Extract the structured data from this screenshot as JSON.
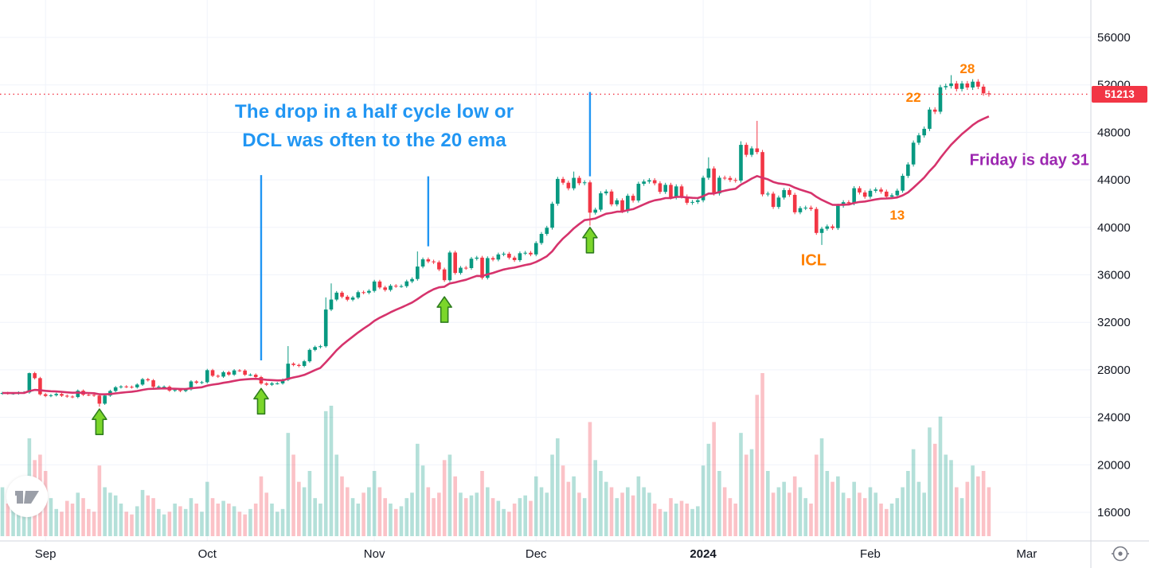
{
  "icons": {
    "logo": "tradingview-logo",
    "bottom_right": "target-icon"
  },
  "chart_data": {
    "type": "candlestick",
    "legend_position": "none",
    "grid": true,
    "x_axis": {
      "labels": [
        {
          "text": "Sep",
          "day": 8
        },
        {
          "text": "Oct",
          "day": 38
        },
        {
          "text": "Nov",
          "day": 69
        },
        {
          "text": "Dec",
          "day": 99
        },
        {
          "text": "2024",
          "day": 130,
          "bold": true
        },
        {
          "text": "Feb",
          "day": 161
        },
        {
          "text": "Mar",
          "day": 190
        }
      ]
    },
    "y_axis": {
      "min": 16000,
      "max": 56000,
      "tick_step": 4000,
      "ticks": [
        56000,
        52000,
        48000,
        44000,
        40000,
        36000,
        32000,
        28000,
        24000,
        20000,
        16000
      ]
    },
    "candles": {
      "first_open": 26000,
      "up_color": "#089981",
      "down_color": "#f23645",
      "closes": [
        26050,
        26010,
        26010,
        26090,
        26100,
        27720,
        27300,
        25940,
        25800,
        25860,
        25970,
        25820,
        25750,
        25710,
        26240,
        25900,
        25890,
        25830,
        25150,
        25830,
        26220,
        26530,
        26600,
        26570,
        26530,
        26760,
        27210,
        27120,
        26570,
        26580,
        26580,
        26250,
        26300,
        26220,
        26360,
        27020,
        26910,
        26960,
        27970,
        27500,
        27430,
        27800,
        27600,
        27950,
        27940,
        27590,
        27590,
        27390,
        26850,
        26750,
        26860,
        26860,
        27160,
        28520,
        28410,
        28330,
        28720,
        29680,
        29920,
        29990,
        33080,
        33920,
        34500,
        34160,
        33910,
        34090,
        34540,
        34500,
        34650,
        35440,
        34940,
        34730,
        35080,
        35050,
        35050,
        35450,
        35650,
        36700,
        37310,
        37130,
        37060,
        36460,
        35550,
        37880,
        36160,
        36600,
        36570,
        37360,
        37450,
        35750,
        37410,
        37290,
        37720,
        37780,
        37450,
        37240,
        37820,
        37860,
        37720,
        38680,
        39450,
        39970,
        41990,
        44080,
        43760,
        43290,
        44170,
        43720,
        43790,
        41240,
        41490,
        42870,
        43020,
        41940,
        42280,
        41370,
        42660,
        42260,
        43670,
        43860,
        43970,
        43710,
        42990,
        43580,
        42520,
        43450,
        42600,
        42070,
        42140,
        42280,
        44180,
        44960,
        42850,
        44180,
        44160,
        43990,
        43940,
        46950,
        46110,
        46650,
        46340,
        42780,
        42840,
        41720,
        42510,
        43140,
        42740,
        41270,
        41620,
        41660,
        41550,
        39530,
        39880,
        40080,
        39940,
        41820,
        42120,
        42030,
        43300,
        42940,
        42580,
        43080,
        43190,
        43010,
        42580,
        42700,
        43090,
        44340,
        45300,
        47130,
        47750,
        48300,
        49920,
        49740,
        51800,
        51900,
        52120,
        51660,
        52120,
        51780,
        52270,
        51850,
        51290,
        51213
      ],
      "wick_overrides": {
        "5": {
          "high": 27770
        },
        "18": {
          "low": 24900
        },
        "53": {
          "high": 30000
        },
        "60": {
          "high": 34100
        },
        "61": {
          "high": 35280
        },
        "77": {
          "high": 37970
        },
        "106": {
          "high": 44700
        },
        "109": {
          "low": 40150
        },
        "131": {
          "high": 45900
        },
        "137": {
          "high": 47250
        },
        "140": {
          "high": 48970
        },
        "152": {
          "low": 38520
        },
        "176": {
          "high": 52820
        }
      }
    },
    "volume": {
      "max_scale": 60,
      "values": [
        18,
        12,
        10,
        11,
        14,
        36,
        28,
        30,
        24,
        14,
        10,
        9,
        13,
        12,
        16,
        14,
        10,
        9,
        26,
        18,
        16,
        15,
        12,
        9,
        8,
        11,
        17,
        15,
        14,
        10,
        8,
        9,
        12,
        11,
        10,
        14,
        12,
        9,
        20,
        14,
        12,
        13,
        12,
        11,
        9,
        8,
        10,
        12,
        22,
        16,
        12,
        9,
        10,
        38,
        30,
        20,
        18,
        24,
        14,
        12,
        46,
        48,
        30,
        22,
        18,
        14,
        12,
        16,
        18,
        24,
        18,
        14,
        12,
        10,
        11,
        14,
        16,
        34,
        26,
        18,
        14,
        16,
        28,
        30,
        22,
        16,
        14,
        15,
        16,
        24,
        18,
        14,
        13,
        10,
        9,
        12,
        14,
        15,
        13,
        22,
        18,
        16,
        30,
        36,
        26,
        20,
        22,
        16,
        14,
        42,
        28,
        24,
        20,
        18,
        14,
        16,
        18,
        15,
        22,
        18,
        16,
        12,
        10,
        9,
        14,
        12,
        13,
        12,
        10,
        11,
        26,
        34,
        42,
        24,
        18,
        14,
        12,
        38,
        30,
        32,
        52,
        60,
        24,
        16,
        18,
        20,
        16,
        22,
        18,
        14,
        12,
        30,
        36,
        24,
        20,
        22,
        16,
        14,
        20,
        16,
        14,
        18,
        16,
        12,
        10,
        12,
        14,
        18,
        24,
        32,
        20,
        16,
        40,
        34,
        44,
        30,
        28,
        18,
        14,
        20,
        26,
        22,
        24,
        18
      ]
    },
    "ema": {
      "period": 20,
      "color": "#d6336c"
    },
    "current_price": 51213,
    "last_price_label": "51213",
    "annotations": {
      "note": {
        "text_line1": "The drop in a half cycle low or",
        "text_line2": "DCL was often to the 20 ema",
        "color": "#2196f3",
        "day": 69,
        "price_line1": 49700,
        "price_line2": 47300
      },
      "vlines": [
        {
          "day": 48,
          "price_top": 44400,
          "price_bottom": 28800
        },
        {
          "day": 79,
          "price_top": 44300,
          "price_bottom": 38400
        },
        {
          "day": 109,
          "price_top": 51400,
          "price_bottom": 44300
        }
      ],
      "arrow_color": "#7bd62a",
      "arrow_outline": "#2f7d1e",
      "arrows": [
        {
          "day": 18,
          "tip_price": 24700
        },
        {
          "day": 48,
          "tip_price": 26430
        },
        {
          "day": 82,
          "tip_price": 34150
        },
        {
          "day": 109,
          "tip_price": 40000
        }
      ],
      "day_count_labels": [
        {
          "text": "13",
          "day": 166,
          "price": 41000
        },
        {
          "text": "22",
          "day": 169,
          "price": 50900
        },
        {
          "text": "28",
          "day": 179,
          "price": 53350
        }
      ],
      "icl_label": {
        "text": "ICL",
        "day": 150.5,
        "price": 37150
      },
      "purple_note": {
        "text": "Friday is day 31",
        "day": 190.5,
        "price": 45600,
        "color": "#9c27b0"
      }
    }
  }
}
